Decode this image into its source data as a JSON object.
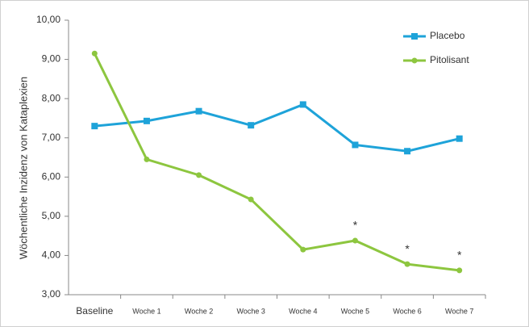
{
  "chart_data": {
    "type": "line",
    "y_label": "Wöchentliche Inzidenz von Kataplexien",
    "categories": [
      "Baseline",
      "Woche 1",
      "Woche 2",
      "Woche 3",
      "Woche 4",
      "Woche 5",
      "Woche 6",
      "Woche 7"
    ],
    "series": [
      {
        "name": "Placebo",
        "color": "#1ea3d9",
        "marker": "square",
        "values": [
          7.3,
          7.43,
          7.68,
          7.32,
          7.85,
          6.82,
          6.66,
          6.98
        ]
      },
      {
        "name": "Pitolisant",
        "color": "#8dc63f",
        "marker": "circle",
        "values": [
          9.15,
          6.45,
          6.05,
          5.43,
          4.15,
          4.38,
          3.78,
          3.62
        ]
      }
    ],
    "annotations": [
      {
        "text": "*",
        "series": 1,
        "index": 5
      },
      {
        "text": "*",
        "series": 1,
        "index": 6
      },
      {
        "text": "*",
        "series": 1,
        "index": 7
      }
    ],
    "ylim": [
      3,
      10
    ],
    "yticks": [
      {
        "value": 3,
        "label": "3,00"
      },
      {
        "value": 4,
        "label": "4,00"
      },
      {
        "value": 5,
        "label": "5,00"
      },
      {
        "value": 6,
        "label": "6,00"
      },
      {
        "value": 7,
        "label": "7,00"
      },
      {
        "value": 8,
        "label": "8,00"
      },
      {
        "value": 9,
        "label": "9,00"
      },
      {
        "value": 10,
        "label": "10,00"
      }
    ],
    "legend": "top-right"
  }
}
